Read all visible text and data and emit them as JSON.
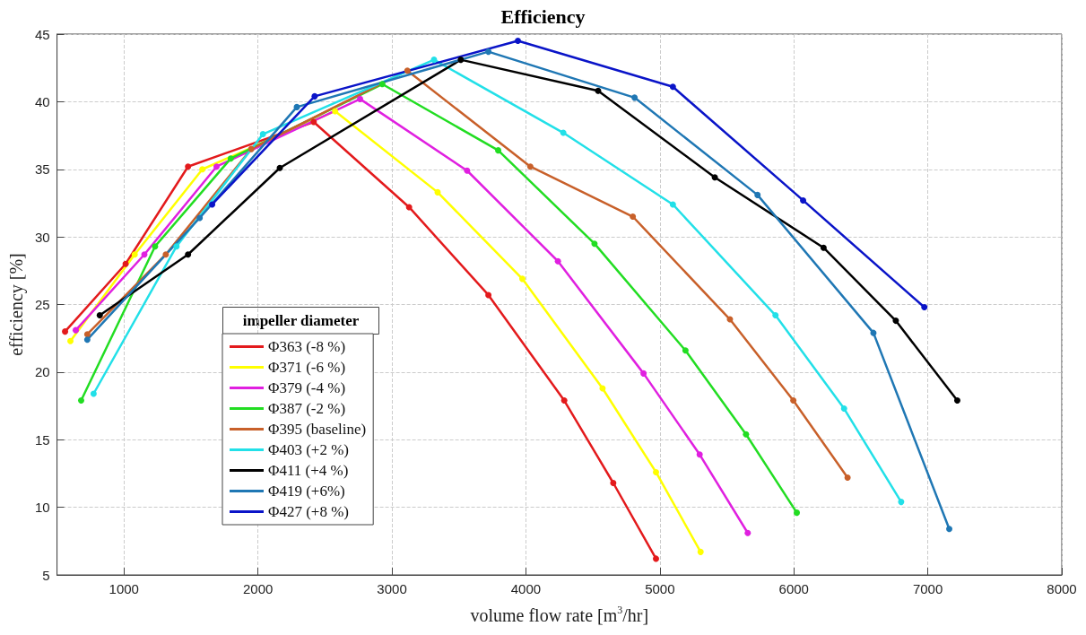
{
  "chart_data": {
    "type": "line",
    "title": "Efficiency",
    "xlabel": "volume flow rate [m$^{3}$/hr]",
    "ylabel": "efficiency [%]",
    "legend_title": "impeller diameter",
    "xlim": [
      500,
      8000
    ],
    "xticks": [
      1000,
      2000,
      3000,
      4000,
      5000,
      6000,
      7000,
      8000
    ],
    "ylim": [
      5,
      45
    ],
    "yticks": [
      5,
      10,
      15,
      20,
      25,
      30,
      35,
      40,
      45
    ],
    "grid": true,
    "legend": "bottom left",
    "marker": "circle",
    "line_style": "solid",
    "series": [
      {
        "name": "Φ363 (-8 %)",
        "color": "#e31a1c",
        "x": [
          560,
          1012,
          1478,
          2416,
          3128,
          3720,
          4286,
          4652,
          4971
        ],
        "values": [
          23.0,
          28.0,
          35.2,
          38.5,
          32.2,
          25.7,
          17.9,
          11.8,
          6.2
        ]
      },
      {
        "name": "Φ371 (-6 %)",
        "color": "#ffff00",
        "x": [
          600,
          1080,
          1585,
          2576,
          3341,
          3973,
          4572,
          4971,
          5304
        ],
        "values": [
          22.3,
          28.7,
          35.0,
          39.3,
          33.3,
          26.9,
          18.8,
          12.6,
          6.7
        ]
      },
      {
        "name": "Φ379 (-4 %)",
        "color": "#e020e0",
        "x": [
          640,
          1152,
          1691,
          2762,
          3561,
          4239,
          4878,
          5297,
          5656
        ],
        "values": [
          23.1,
          28.7,
          35.2,
          40.2,
          34.9,
          28.2,
          19.9,
          13.9,
          8.1
        ]
      },
      {
        "name": "Φ387 (-2 %)",
        "color": "#22dd22",
        "x": [
          680,
          1232,
          1797,
          2928,
          3793,
          4512,
          5191,
          5643,
          6022
        ],
        "values": [
          17.9,
          29.3,
          35.8,
          41.3,
          36.4,
          29.5,
          21.6,
          15.4,
          9.6
        ]
      },
      {
        "name": "Φ395 (baseline)",
        "color": "#c8602a",
        "x": [
          726,
          1312,
          1950,
          3115,
          4033,
          4798,
          5523,
          5996,
          6401
        ],
        "values": [
          22.8,
          28.7,
          36.5,
          42.3,
          35.2,
          31.5,
          23.9,
          17.9,
          12.2
        ]
      },
      {
        "name": "Φ403 (+2 %)",
        "color": "#22e0e8",
        "x": [
          773,
          1392,
          2037,
          3314,
          4279,
          5097,
          5863,
          6375,
          6801
        ],
        "values": [
          18.4,
          29.3,
          37.6,
          43.1,
          37.7,
          32.4,
          24.2,
          17.3,
          10.4
        ]
      },
      {
        "name": "Φ411 (+4 %)",
        "color": "#000000",
        "x": [
          819,
          1478,
          2163,
          3514,
          4539,
          5410,
          6222,
          6761,
          7220
        ],
        "values": [
          24.2,
          28.7,
          35.1,
          43.1,
          40.8,
          34.4,
          29.2,
          23.8,
          17.9
        ]
      },
      {
        "name": "Φ419 (+6%)",
        "color": "#1f77b4",
        "x": [
          726,
          1565,
          2290,
          3720,
          4811,
          5729,
          6594,
          7160
        ],
        "values": [
          22.4,
          31.4,
          39.6,
          43.7,
          40.3,
          33.1,
          22.9,
          8.4
        ]
      },
      {
        "name": "Φ427 (+8 %)",
        "color": "#0a14c8",
        "x": [
          1658,
          2423,
          3940,
          5097,
          6069,
          6974
        ],
        "values": [
          32.4,
          40.4,
          44.5,
          41.1,
          32.7,
          24.8
        ]
      }
    ]
  }
}
